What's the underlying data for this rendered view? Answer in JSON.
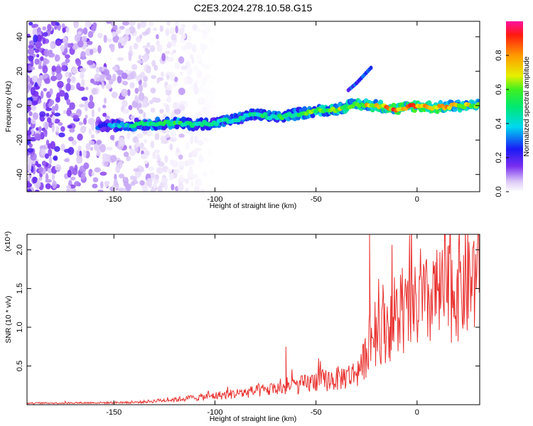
{
  "figure_title": "C2E3.2024.278.10.58.G15",
  "colors": {
    "snr_line": "#e8312e",
    "axis": "#000000",
    "background": "#ffffff"
  },
  "chart_data": [
    {
      "type": "heatmap",
      "title": "C2E3.2024.278.10.58.G15",
      "xlabel": "Height of straight line (km)",
      "ylabel": "Frequency (Hz)",
      "xlim": [
        -193,
        31
      ],
      "ylim": [
        -50,
        49
      ],
      "x_ticks": [
        -150,
        -100,
        -50,
        0
      ],
      "y_ticks": [
        -40,
        -20,
        0,
        20,
        40
      ],
      "grid": false,
      "colormap": "rainbow",
      "colorbar": {
        "label": "Normalized spectral amplitude",
        "range": [
          0,
          1
        ],
        "ticks": [
          "0.0",
          "0.2",
          "0.4",
          "0.6",
          "0.8"
        ]
      },
      "ridge": {
        "description": "dominant spectral line",
        "x": [
          -158,
          -140,
          -120,
          -110,
          -100,
          -90,
          -80,
          -70,
          -60,
          -50,
          -40,
          -30,
          -20,
          -10,
          0,
          10,
          20,
          30
        ],
        "frequency_hz": [
          -12,
          -11,
          -10,
          -11,
          -10,
          -8,
          -5,
          -7,
          -5,
          -3,
          -2,
          1,
          0,
          -2,
          0,
          -1,
          0,
          0
        ],
        "amplitude": [
          0.3,
          0.5,
          0.6,
          0.5,
          0.5,
          0.5,
          0.5,
          0.55,
          0.6,
          0.65,
          0.7,
          0.75,
          0.85,
          0.9,
          0.95,
          0.9,
          0.8,
          0.75
        ]
      },
      "branch": {
        "description": "secondary ascending streak",
        "x": [
          -34,
          -30,
          -26,
          -22
        ],
        "frequency_hz": [
          9,
          13,
          18,
          23
        ]
      },
      "noise_region": {
        "x": [
          -193,
          -120
        ],
        "frequency_hz": [
          -50,
          49
        ]
      }
    },
    {
      "type": "line",
      "xlabel": "Height of straight line (km)",
      "ylabel": "SNR (10 * v/v)",
      "y_multiplier": "(x10⁴)",
      "xlim": [
        -193,
        31
      ],
      "ylim": [
        0,
        2.2
      ],
      "x_ticks": [
        -150,
        -100,
        -50,
        0
      ],
      "y_ticks": [
        0.5,
        1.0,
        1.5,
        2.0
      ],
      "grid": false,
      "series": [
        {
          "color": "#e8312e",
          "envelope_x": [
            -193,
            -140,
            -120,
            -100,
            -80,
            -60,
            -50,
            -40,
            -30,
            -26,
            -23,
            -22,
            -20,
            -10,
            0,
            10,
            20,
            31
          ],
          "envelope_y": [
            0.02,
            0.03,
            0.07,
            0.12,
            0.18,
            0.25,
            0.32,
            0.35,
            0.42,
            0.6,
            1.0,
            0.9,
            1.0,
            1.15,
            1.3,
            1.45,
            1.6,
            1.75
          ],
          "spikes": [
            {
              "x": -23.5,
              "y": 2.2
            },
            {
              "x": -65,
              "y": 0.75
            },
            {
              "x": -17,
              "y": 1.55
            },
            {
              "x": -2,
              "y": 1.55
            }
          ]
        }
      ]
    }
  ]
}
